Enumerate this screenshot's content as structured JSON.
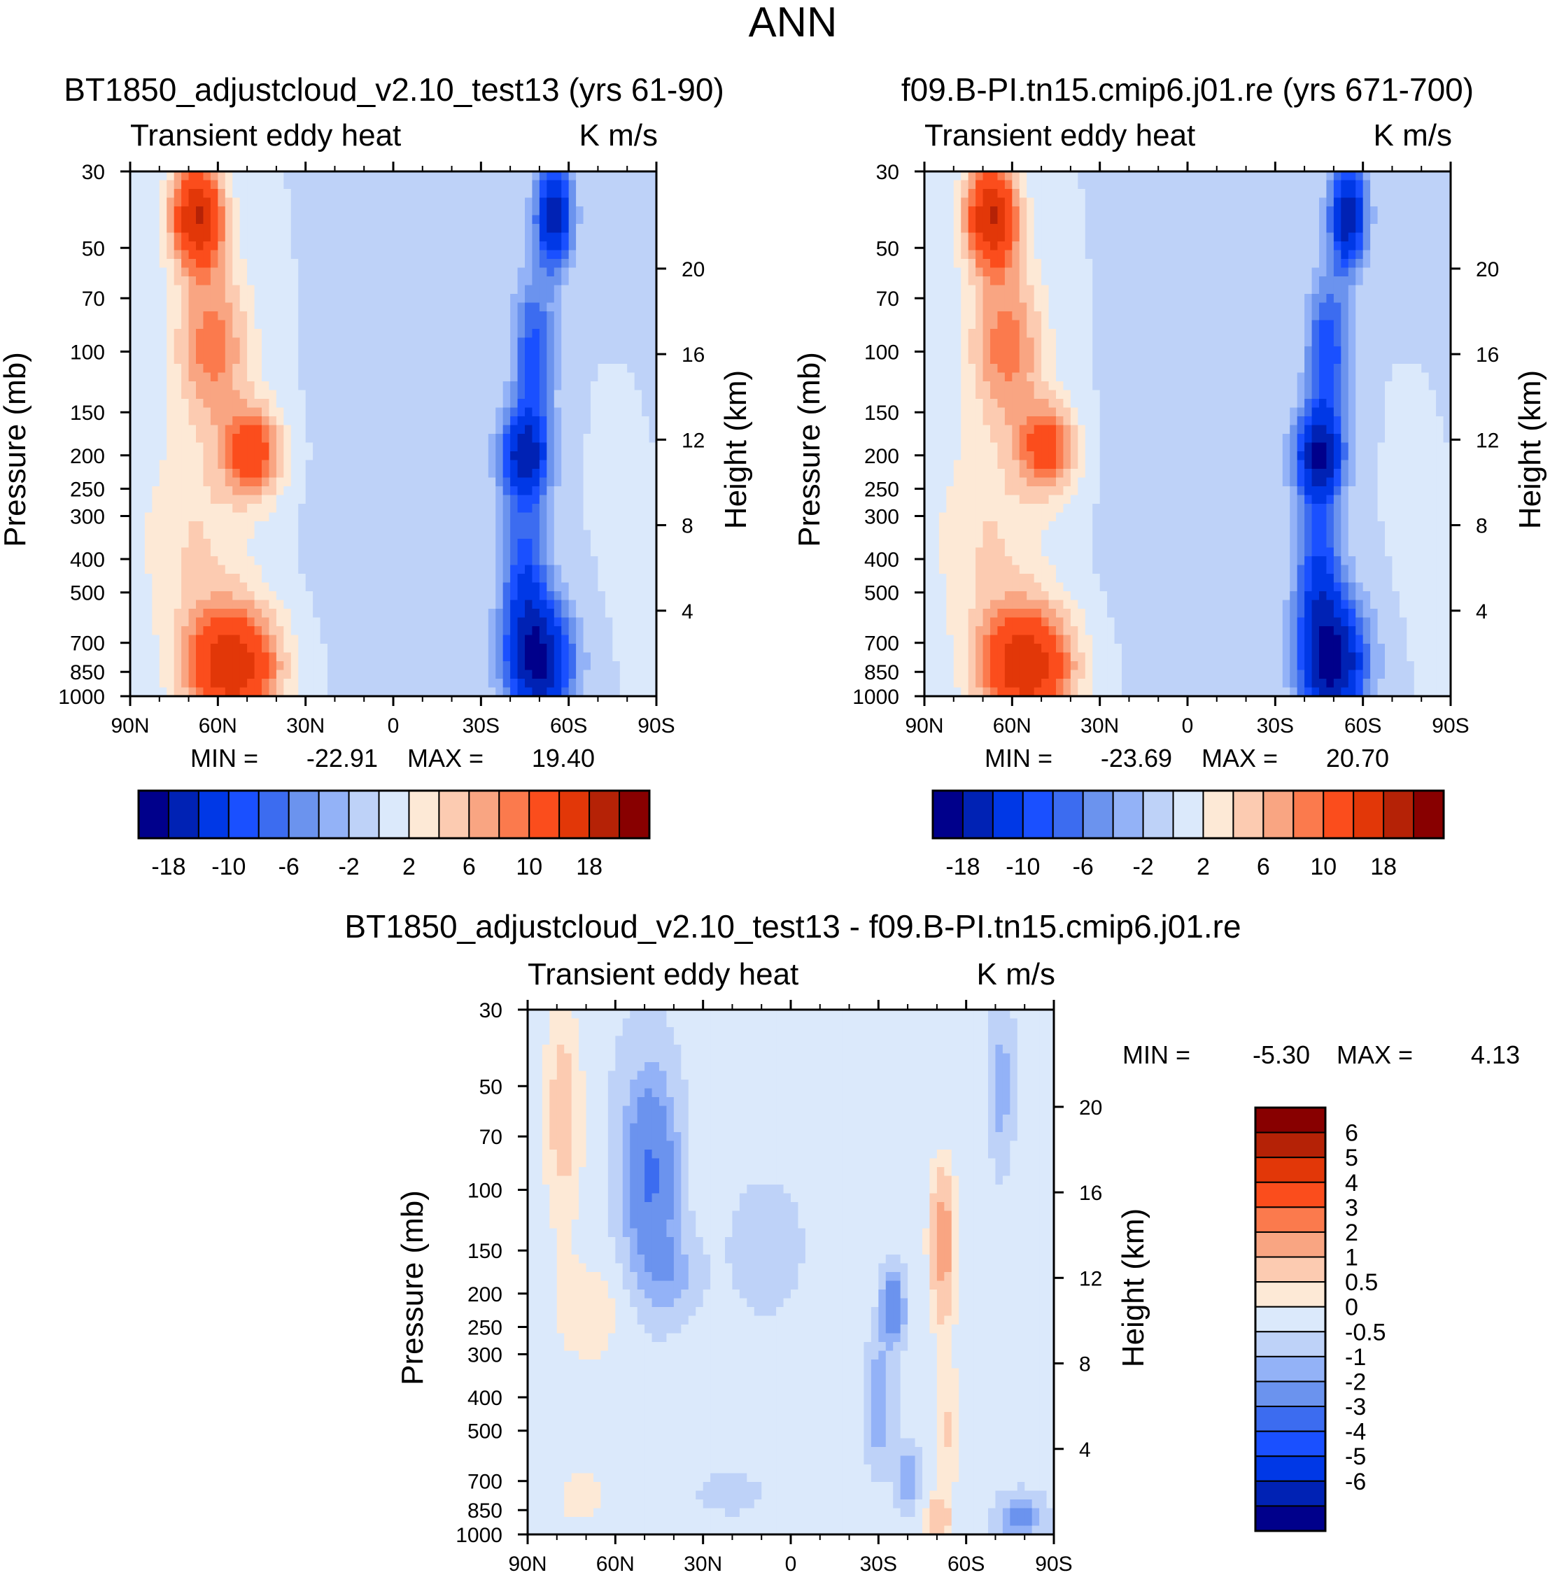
{
  "chart_data": {
    "title": "ANN",
    "panels": [
      {
        "id": "test",
        "type": "heatmap",
        "subtitle": "BT1850_adjustcloud_v2.10_test13 (yrs 61-90)",
        "left_label": "Transient eddy heat",
        "right_label": "K m/s",
        "xlabel": "",
        "ylabel": "Pressure (mb)",
        "y2label": "Height (km)",
        "x_ticks": [
          "90N",
          "60N",
          "30N",
          "0",
          "30S",
          "60S",
          "90S"
        ],
        "x_range": [
          90,
          -90
        ],
        "y_ticks": [
          30,
          50,
          70,
          100,
          150,
          200,
          250,
          300,
          400,
          500,
          700,
          850,
          1000
        ],
        "y_range": [
          30,
          1000
        ],
        "y2_ticks": [
          4,
          8,
          12,
          16,
          20
        ],
        "min_label": "MIN =",
        "min_value": "-22.91",
        "max_label": "MAX =",
        "max_value": "19.40",
        "levels": [
          -18,
          -14,
          -10,
          -8,
          -6,
          -4,
          -2,
          0,
          2,
          4,
          6,
          8,
          10,
          14,
          18
        ],
        "colorbar_labels": [
          "-18",
          "-10",
          "-6",
          "-2",
          "2",
          "6",
          "10",
          "18"
        ],
        "colors": [
          "#00008b",
          "#0022b4",
          "#0038e6",
          "#1a50ff",
          "#3c6cf0",
          "#6b93ee",
          "#93b2f7",
          "#bed2f8",
          "#dbe9fb",
          "#fde9d6",
          "#fccbb1",
          "#f9a582",
          "#fb7a4d",
          "#fb4d1c",
          "#e23708",
          "#b52206",
          "#880000"
        ],
        "features": [
          {
            "lat": 67,
            "p": 40,
            "v": 18,
            "slat": 9,
            "sp": 0.35
          },
          {
            "lat": 62,
            "p": 95,
            "v": 9,
            "slat": 13,
            "sp": 0.55
          },
          {
            "lat": 48,
            "p": 195,
            "v": 12,
            "slat": 10,
            "sp": 0.3
          },
          {
            "lat": 55,
            "p": 820,
            "v": 17,
            "slat": 16,
            "sp": 0.4
          },
          {
            "lat": 68,
            "p": 350,
            "v": 4,
            "slat": 20,
            "sp": 0.7
          },
          {
            "lat": -45,
            "p": 200,
            "v": -16,
            "slat": 8,
            "sp": 0.3
          },
          {
            "lat": -55,
            "p": 40,
            "v": -17,
            "slat": 6,
            "sp": 0.35
          },
          {
            "lat": -50,
            "p": 800,
            "v": -18,
            "slat": 11,
            "sp": 0.4
          },
          {
            "lat": -45,
            "p": 450,
            "v": -9,
            "slat": 8,
            "sp": 0.55
          },
          {
            "lat": -48,
            "p": 100,
            "v": -9,
            "slat": 7,
            "sp": 0.5
          },
          {
            "lat": 5,
            "p": 300,
            "v": -1.2,
            "slat": 22,
            "sp": 1.2
          },
          {
            "lat": -78,
            "p": 200,
            "v": 1.2,
            "slat": 6,
            "sp": 0.8
          },
          {
            "lat": -80,
            "p": 60,
            "v": -1.2,
            "slat": 8,
            "sp": 0.8
          }
        ]
      },
      {
        "id": "control",
        "type": "heatmap",
        "subtitle": "f09.B-PI.tn15.cmip6.j01.re (yrs 671-700)",
        "left_label": "Transient eddy heat",
        "right_label": "K m/s",
        "xlabel": "",
        "ylabel": "Pressure (mb)",
        "y2label": "Height (km)",
        "x_ticks": [
          "90N",
          "60N",
          "30N",
          "0",
          "30S",
          "60S",
          "90S"
        ],
        "x_range": [
          90,
          -90
        ],
        "y_ticks": [
          30,
          50,
          70,
          100,
          150,
          200,
          250,
          300,
          400,
          500,
          700,
          850,
          1000
        ],
        "y_range": [
          30,
          1000
        ],
        "y2_ticks": [
          4,
          8,
          12,
          16,
          20
        ],
        "min_label": "MIN =",
        "min_value": "-23.69",
        "max_label": "MAX =",
        "max_value": "20.70",
        "levels": [
          -18,
          -14,
          -10,
          -8,
          -6,
          -4,
          -2,
          0,
          2,
          4,
          6,
          8,
          10,
          14,
          18
        ],
        "colorbar_labels": [
          "-18",
          "-10",
          "-6",
          "-2",
          "2",
          "6",
          "10",
          "18"
        ],
        "colors": [
          "#00008b",
          "#0022b4",
          "#0038e6",
          "#1a50ff",
          "#3c6cf0",
          "#6b93ee",
          "#93b2f7",
          "#bed2f8",
          "#dbe9fb",
          "#fde9d6",
          "#fccbb1",
          "#f9a582",
          "#fb7a4d",
          "#fb4d1c",
          "#e23708",
          "#b52206",
          "#880000"
        ],
        "features": [
          {
            "lat": 67,
            "p": 40,
            "v": 18,
            "slat": 9,
            "sp": 0.35
          },
          {
            "lat": 62,
            "p": 95,
            "v": 9,
            "slat": 13,
            "sp": 0.55
          },
          {
            "lat": 48,
            "p": 190,
            "v": 11,
            "slat": 10,
            "sp": 0.3
          },
          {
            "lat": 55,
            "p": 820,
            "v": 17,
            "slat": 16,
            "sp": 0.4
          },
          {
            "lat": 68,
            "p": 350,
            "v": 4,
            "slat": 20,
            "sp": 0.7
          },
          {
            "lat": -45,
            "p": 200,
            "v": -17,
            "slat": 8,
            "sp": 0.3
          },
          {
            "lat": -55,
            "p": 40,
            "v": -17,
            "slat": 6,
            "sp": 0.35
          },
          {
            "lat": -50,
            "p": 800,
            "v": -19,
            "slat": 11,
            "sp": 0.4
          },
          {
            "lat": -45,
            "p": 450,
            "v": -10,
            "slat": 8,
            "sp": 0.55
          },
          {
            "lat": -48,
            "p": 100,
            "v": -10,
            "slat": 7,
            "sp": 0.5
          },
          {
            "lat": 5,
            "p": 300,
            "v": -1.2,
            "slat": 22,
            "sp": 1.2
          },
          {
            "lat": -78,
            "p": 200,
            "v": 1.2,
            "slat": 6,
            "sp": 0.8
          },
          {
            "lat": -80,
            "p": 60,
            "v": -1.2,
            "slat": 8,
            "sp": 0.8
          }
        ]
      },
      {
        "id": "diff",
        "type": "heatmap",
        "subtitle": "BT1850_adjustcloud_v2.10_test13 - f09.B-PI.tn15.cmip6.j01.re",
        "left_label": "Transient eddy heat",
        "right_label": "K m/s",
        "xlabel": "",
        "ylabel": "Pressure (mb)",
        "y2label": "Height (km)",
        "x_ticks": [
          "90N",
          "60N",
          "30N",
          "0",
          "30S",
          "60S",
          "90S"
        ],
        "x_range": [
          90,
          -90
        ],
        "y_ticks": [
          30,
          50,
          70,
          100,
          150,
          200,
          250,
          300,
          400,
          500,
          700,
          850,
          1000
        ],
        "y_range": [
          30,
          1000
        ],
        "y2_ticks": [
          4,
          8,
          12,
          16,
          20
        ],
        "min_label": "MIN =",
        "min_value": "-5.30",
        "max_label": "MAX =",
        "max_value": "4.13",
        "levels": [
          -6,
          -5,
          -4,
          -3,
          -2,
          -1,
          -0.5,
          0,
          0.5,
          1,
          2,
          3,
          4,
          5,
          6
        ],
        "colorbar_labels": [
          "6",
          "5",
          "4",
          "3",
          "2",
          "1",
          "0.5",
          "0",
          "-0.5",
          "-1",
          "-2",
          "-3",
          "-4",
          "-5",
          "-6"
        ],
        "colors": [
          "#00008b",
          "#0022b4",
          "#0038e6",
          "#1a50ff",
          "#3c6cf0",
          "#6b93ee",
          "#93b2f7",
          "#bed2f8",
          "#dbe9fb",
          "#fde9d6",
          "#fccbb1",
          "#f9a582",
          "#fb7a4d",
          "#fb4d1c",
          "#e23708",
          "#b52206",
          "#880000"
        ],
        "features": [
          {
            "lat": 0,
            "p": 300,
            "v": 0.35,
            "slat": 60,
            "sp": 3.0
          },
          {
            "lat": 78,
            "p": 60,
            "v": 1.3,
            "slat": 7,
            "sp": 0.8
          },
          {
            "lat": 70,
            "p": 230,
            "v": 0.8,
            "slat": 12,
            "sp": 0.35
          },
          {
            "lat": 72,
            "p": 780,
            "v": 0.8,
            "slat": 8,
            "sp": 0.2
          },
          {
            "lat": 48,
            "p": 90,
            "v": -2.3,
            "slat": 9,
            "sp": 0.65
          },
          {
            "lat": 40,
            "p": 180,
            "v": -0.8,
            "slat": 10,
            "sp": 0.3
          },
          {
            "lat": 8,
            "p": 150,
            "v": -0.7,
            "slat": 14,
            "sp": 0.5
          },
          {
            "lat": 20,
            "p": 760,
            "v": -0.6,
            "slat": 12,
            "sp": 0.15
          },
          {
            "lat": -35,
            "p": 220,
            "v": -2.0,
            "slat": 4,
            "sp": 0.25
          },
          {
            "lat": -30,
            "p": 420,
            "v": -1.3,
            "slat": 5,
            "sp": 0.4
          },
          {
            "lat": -40,
            "p": 680,
            "v": -1.2,
            "slat": 4,
            "sp": 0.2
          },
          {
            "lat": -52,
            "p": 140,
            "v": 2.6,
            "slat": 4,
            "sp": 0.45
          },
          {
            "lat": -53,
            "p": 500,
            "v": 0.9,
            "slat": 4,
            "sp": 0.7
          },
          {
            "lat": -50,
            "p": 900,
            "v": 1.5,
            "slat": 4,
            "sp": 0.12
          },
          {
            "lat": -72,
            "p": 50,
            "v": -1.0,
            "slat": 3,
            "sp": 0.4
          },
          {
            "lat": -78,
            "p": 900,
            "v": -1.6,
            "slat": 6,
            "sp": 0.12
          }
        ]
      }
    ]
  }
}
